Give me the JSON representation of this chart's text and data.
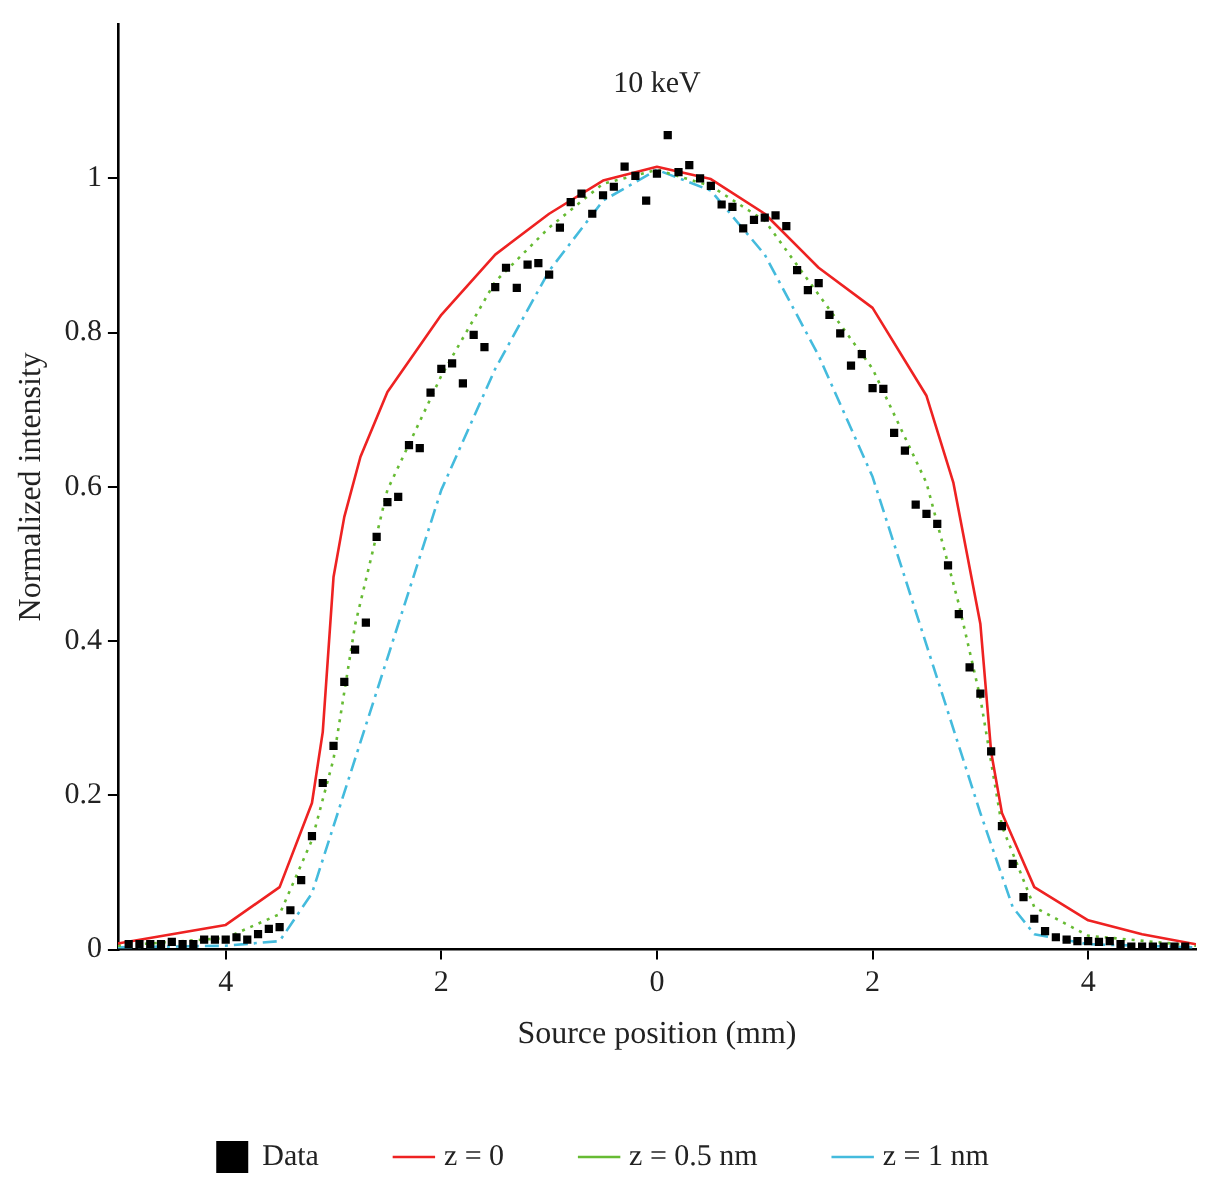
{
  "chart_data": {
    "type": "line",
    "xlabel": "Source position (mm)",
    "ylabel": "Normalized intensity",
    "annotations": [
      "10 keV"
    ],
    "xlim": [
      -5,
      5
    ],
    "xticks": [
      {
        "value": -4,
        "label": "4"
      },
      {
        "value": -2,
        "label": "2"
      },
      0,
      {
        "value": 2,
        "label": "2"
      },
      {
        "value": 4,
        "label": "4"
      }
    ],
    "ylim": [
      0,
      1.2
    ],
    "yticks": [
      0,
      0.2,
      0.4,
      0.6,
      0.8,
      1
    ],
    "grid": false,
    "legend": "bottom",
    "series": [
      {
        "name": "Data",
        "type": "scatter",
        "color": "#000000",
        "marker": "square",
        "x": [
          -4.9,
          -4.8,
          -4.7,
          -4.6,
          -4.5,
          -4.4,
          -4.3,
          -4.2,
          -4.1,
          -4.0,
          -3.9,
          -3.8,
          -3.7,
          -3.6,
          -3.5,
          -3.4,
          -3.3,
          -3.2,
          -3.1,
          -3.0,
          -2.9,
          -2.8,
          -2.7,
          -2.6,
          -2.5,
          -2.4,
          -2.3,
          -2.2,
          -2.1,
          -2.0,
          -1.9,
          -1.8,
          -1.7,
          -1.6,
          -1.5,
          -1.4,
          -1.3,
          -1.2,
          -1.1,
          -1.0,
          -0.9,
          -0.8,
          -0.7,
          -0.6,
          -0.5,
          -0.4,
          -0.3,
          -0.2,
          -0.1,
          0.0,
          0.1,
          0.2,
          0.3,
          0.4,
          0.5,
          0.6,
          0.7,
          0.8,
          0.9,
          1.0,
          1.1,
          1.2,
          1.3,
          1.4,
          1.5,
          1.6,
          1.7,
          1.8,
          1.9,
          2.0,
          2.1,
          2.2,
          2.3,
          2.4,
          2.5,
          2.6,
          2.7,
          2.8,
          2.9,
          3.0,
          3.1,
          3.2,
          3.3,
          3.4,
          3.5,
          3.6,
          3.7,
          3.8,
          3.9,
          4.0,
          4.1,
          4.2,
          4.3,
          4.4,
          4.5,
          4.6,
          4.7,
          4.8,
          4.9
        ],
        "values": [
          0.007,
          0.007,
          0.007,
          0.007,
          0.01,
          0.007,
          0.007,
          0.013,
          0.013,
          0.013,
          0.016,
          0.013,
          0.02,
          0.027,
          0.029,
          0.051,
          0.09,
          0.147,
          0.216,
          0.264,
          0.347,
          0.389,
          0.424,
          0.535,
          0.58,
          0.587,
          0.654,
          0.65,
          0.722,
          0.753,
          0.76,
          0.734,
          0.797,
          0.781,
          0.859,
          0.884,
          0.858,
          0.888,
          0.89,
          0.875,
          0.936,
          0.969,
          0.98,
          0.954,
          0.978,
          0.989,
          1.015,
          1.003,
          0.971,
          1.006,
          1.056,
          1.008,
          1.017,
          1.0,
          0.99,
          0.966,
          0.963,
          0.935,
          0.946,
          0.949,
          0.952,
          0.938,
          0.881,
          0.855,
          0.864,
          0.823,
          0.799,
          0.757,
          0.772,
          0.728,
          0.727,
          0.67,
          0.647,
          0.577,
          0.565,
          0.552,
          0.498,
          0.435,
          0.366,
          0.332,
          0.257,
          0.16,
          0.111,
          0.068,
          0.04,
          0.024,
          0.016,
          0.013,
          0.011,
          0.011,
          0.01,
          0.011,
          0.007,
          0.004,
          0.004,
          0.004,
          0.004,
          0.004,
          0.004
        ]
      },
      {
        "name": "z = 0",
        "type": "line",
        "color": "#ee2222",
        "line_style": "solid",
        "x": [
          -5,
          -4.5,
          -4,
          -3.5,
          -3.2,
          -3.1,
          -3,
          -2.9,
          -2.75,
          -2.5,
          -2,
          -1.5,
          -1,
          -0.5,
          0,
          0.5,
          1,
          1.5,
          2,
          2.5,
          2.75,
          3,
          3.1,
          3.2,
          3.5,
          4,
          4.5,
          5
        ],
        "values": [
          0.008,
          0.02,
          0.032,
          0.081,
          0.19,
          0.282,
          0.483,
          0.561,
          0.639,
          0.723,
          0.823,
          0.901,
          0.954,
          0.997,
          1.015,
          0.999,
          0.954,
          0.884,
          0.832,
          0.718,
          0.605,
          0.422,
          0.256,
          0.177,
          0.081,
          0.038,
          0.02,
          0.007
        ]
      },
      {
        "name": "z = 0.5 nm",
        "type": "line",
        "color": "#66bb33",
        "line_style": "dotted",
        "x": [
          -5,
          -4,
          -3.5,
          -3.2,
          -3,
          -2.8,
          -2.5,
          -2,
          -1.5,
          -1,
          -0.5,
          0,
          0.5,
          1,
          1.5,
          2,
          2.5,
          2.8,
          3,
          3.2,
          3.5,
          4,
          5
        ],
        "values": [
          0.005,
          0.015,
          0.046,
          0.142,
          0.247,
          0.421,
          0.596,
          0.744,
          0.866,
          0.936,
          0.993,
          1.011,
          0.99,
          0.945,
          0.849,
          0.753,
          0.605,
          0.448,
          0.326,
          0.16,
          0.055,
          0.018,
          0.005
        ]
      },
      {
        "name": "z = 1 nm",
        "type": "line",
        "color": "#44bbdd",
        "line_style": "dashed",
        "x": [
          -5,
          -4,
          -3.5,
          -3.2,
          -3,
          -2.5,
          -2,
          -1.5,
          -1,
          -0.5,
          0,
          0.5,
          1,
          1.5,
          2,
          2.5,
          3,
          3.3,
          3.5,
          4,
          5
        ],
        "values": [
          0.003,
          0.005,
          0.011,
          0.073,
          0.16,
          0.378,
          0.596,
          0.753,
          0.88,
          0.971,
          1.011,
          0.984,
          0.901,
          0.77,
          0.613,
          0.395,
          0.177,
          0.055,
          0.02,
          0.007,
          0.003
        ]
      }
    ]
  }
}
